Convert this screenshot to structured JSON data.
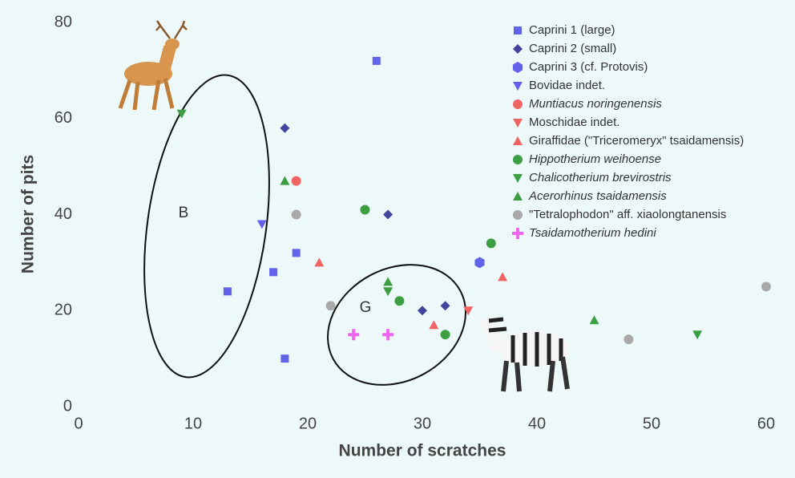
{
  "chart_data": {
    "type": "scatter",
    "xlabel": "Number of scratches",
    "ylabel": "Number of pits",
    "xlim": [
      0,
      60
    ],
    "ylim": [
      0,
      80
    ],
    "xticks": [
      0,
      10,
      20,
      30,
      40,
      50,
      60
    ],
    "yticks": [
      0,
      20,
      40,
      60,
      80
    ],
    "grid": false,
    "legend": "upper right",
    "annotations": [
      "B",
      "G"
    ],
    "series": [
      {
        "name": "Caprini 1 (large)",
        "color": "#6262ea",
        "marker": "square",
        "italic": false,
        "x": [
          26,
          13,
          17,
          19,
          18
        ],
        "values": [
          72,
          24,
          28,
          32,
          10
        ]
      },
      {
        "name": "Caprini 2 (small)",
        "color": "#43449c",
        "marker": "diamond",
        "italic": false,
        "x": [
          18,
          27,
          30,
          32
        ],
        "values": [
          58,
          40,
          20,
          21
        ]
      },
      {
        "name": "Caprini 3 (cf. Protovis)",
        "color": "#6262ea",
        "marker": "hexagon",
        "italic": false,
        "x": [
          35
        ],
        "values": [
          30
        ]
      },
      {
        "name": "Bovidae indet.",
        "color": "#6262ea",
        "marker": "triangle-down",
        "italic": false,
        "x": [
          16
        ],
        "values": [
          38
        ]
      },
      {
        "name": "Muntiacus noringenensis",
        "color": "#f06464",
        "marker": "circle",
        "italic": true,
        "x": [
          19
        ],
        "values": [
          47
        ]
      },
      {
        "name": "Moschidae indet.",
        "color": "#f06464",
        "marker": "triangle-down",
        "italic": false,
        "x": [
          34
        ],
        "values": [
          20
        ]
      },
      {
        "name": "Giraffidae (\"Triceromeryx\" tsaidamensis)",
        "color": "#f06464",
        "marker": "triangle-up",
        "italic": false,
        "x": [
          21,
          31,
          37
        ],
        "values": [
          30,
          17,
          27
        ]
      },
      {
        "name": "Hippotherium weihoense",
        "color": "#3c9f43",
        "marker": "circle",
        "italic": true,
        "x": [
          25,
          36,
          28,
          32
        ],
        "values": [
          41,
          34,
          22,
          15
        ]
      },
      {
        "name": "Chalicotherium brevirostris",
        "color": "#3c9f43",
        "marker": "triangle-down",
        "italic": true,
        "x": [
          9,
          27,
          54
        ],
        "values": [
          61,
          24,
          15
        ]
      },
      {
        "name": "Acerorhinus tsaidamensis",
        "color": "#3c9f43",
        "marker": "triangle-up",
        "italic": true,
        "x": [
          18,
          27,
          45
        ],
        "values": [
          47,
          26,
          18
        ]
      },
      {
        "name": "\"Tetralophodon\" aff. xiaolongtanensis",
        "color": "#a9a9a9",
        "marker": "circle",
        "italic": false,
        "x": [
          19,
          22,
          48,
          60
        ],
        "values": [
          40,
          21,
          14,
          25
        ]
      },
      {
        "name": "Tsaidamotherium hedini",
        "color": "#f064f0",
        "marker": "plus",
        "italic": true,
        "x": [
          24,
          27
        ],
        "values": [
          15,
          15
        ]
      }
    ]
  }
}
